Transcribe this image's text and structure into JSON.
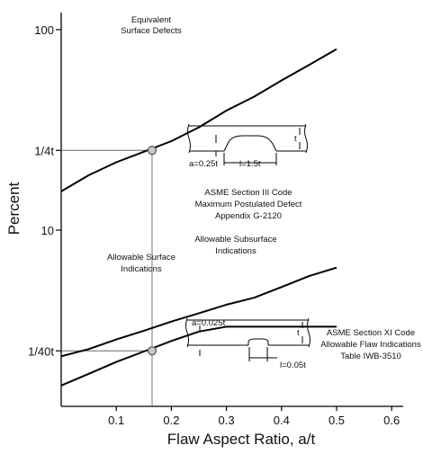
{
  "chart_data": {
    "type": "line",
    "title": "",
    "xlabel": "Flaw Aspect Ratio, a/t",
    "ylabel": "Percent",
    "xlim": [
      0,
      0.6
    ],
    "ylim": [
      0.4,
      100
    ],
    "y_scale": "log",
    "grid": false,
    "x_ticks": [
      {
        "value": 0.1,
        "label": "0.1"
      },
      {
        "value": 0.2,
        "label": "0.2"
      },
      {
        "value": 0.3,
        "label": "0.3"
      },
      {
        "value": 0.4,
        "label": "0.4"
      },
      {
        "value": 0.5,
        "label": "0.5"
      },
      {
        "value": 0.6,
        "label": "0.6"
      }
    ],
    "y_ticks": [
      {
        "value": 100,
        "label": "100"
      },
      {
        "value": 25,
        "label": "1/4t"
      },
      {
        "value": 10,
        "label": "10"
      },
      {
        "value": 2.5,
        "label": "1/40t"
      }
    ],
    "series": [
      {
        "x": [
          0.0,
          0.05,
          0.1,
          0.15,
          0.2,
          0.25,
          0.3,
          0.35,
          0.4,
          0.45,
          0.5
        ],
        "values": [
          15.6,
          18.8,
          21.8,
          24.6,
          27.8,
          32.6,
          39.5,
          46.3,
          55.8,
          66.7,
          80.0
        ]
      },
      {
        "x": [
          0.0,
          0.05,
          0.1,
          0.15,
          0.2,
          0.25,
          0.3,
          0.35,
          0.4,
          0.45,
          0.5
        ],
        "values": [
          2.35,
          2.55,
          2.85,
          3.15,
          3.5,
          3.85,
          4.25,
          4.6,
          5.2,
          5.9,
          6.5
        ]
      },
      {
        "x": [
          0.0,
          0.05,
          0.1,
          0.15,
          0.2,
          0.25,
          0.3,
          0.35,
          0.4,
          0.45,
          0.5
        ],
        "values": [
          1.68,
          1.92,
          2.2,
          2.48,
          2.8,
          3.12,
          3.3,
          3.3,
          3.3,
          3.3,
          3.3
        ]
      }
    ],
    "markers": [
      {
        "x": 0.165,
        "y": 25
      },
      {
        "x": 0.165,
        "y": 2.5
      }
    ],
    "reference_lines": {
      "vertical_x": 0.165,
      "horizontal_y": [
        25,
        2.5
      ]
    },
    "annotations": {
      "equivalent": [
        "Equivalent",
        "Surface Defects"
      ],
      "section3": [
        "ASME Section III Code",
        "Maximum Postulated Defect",
        "Appendix G-2120"
      ],
      "subsurface": [
        "Allowable Subsurface",
        "Indications"
      ],
      "surface": [
        "Allowable Surface",
        "Indications"
      ],
      "section11": [
        "ASME Section XI Code",
        "Allowable Flaw Indications",
        "Table IWB-3510"
      ]
    },
    "sketch_upper": {
      "t": "t",
      "a": "a=0.25t",
      "l": "l=1.5t"
    },
    "sketch_lower": {
      "t": "t",
      "a": "a=0.025t",
      "l": "l=0.05t"
    }
  }
}
